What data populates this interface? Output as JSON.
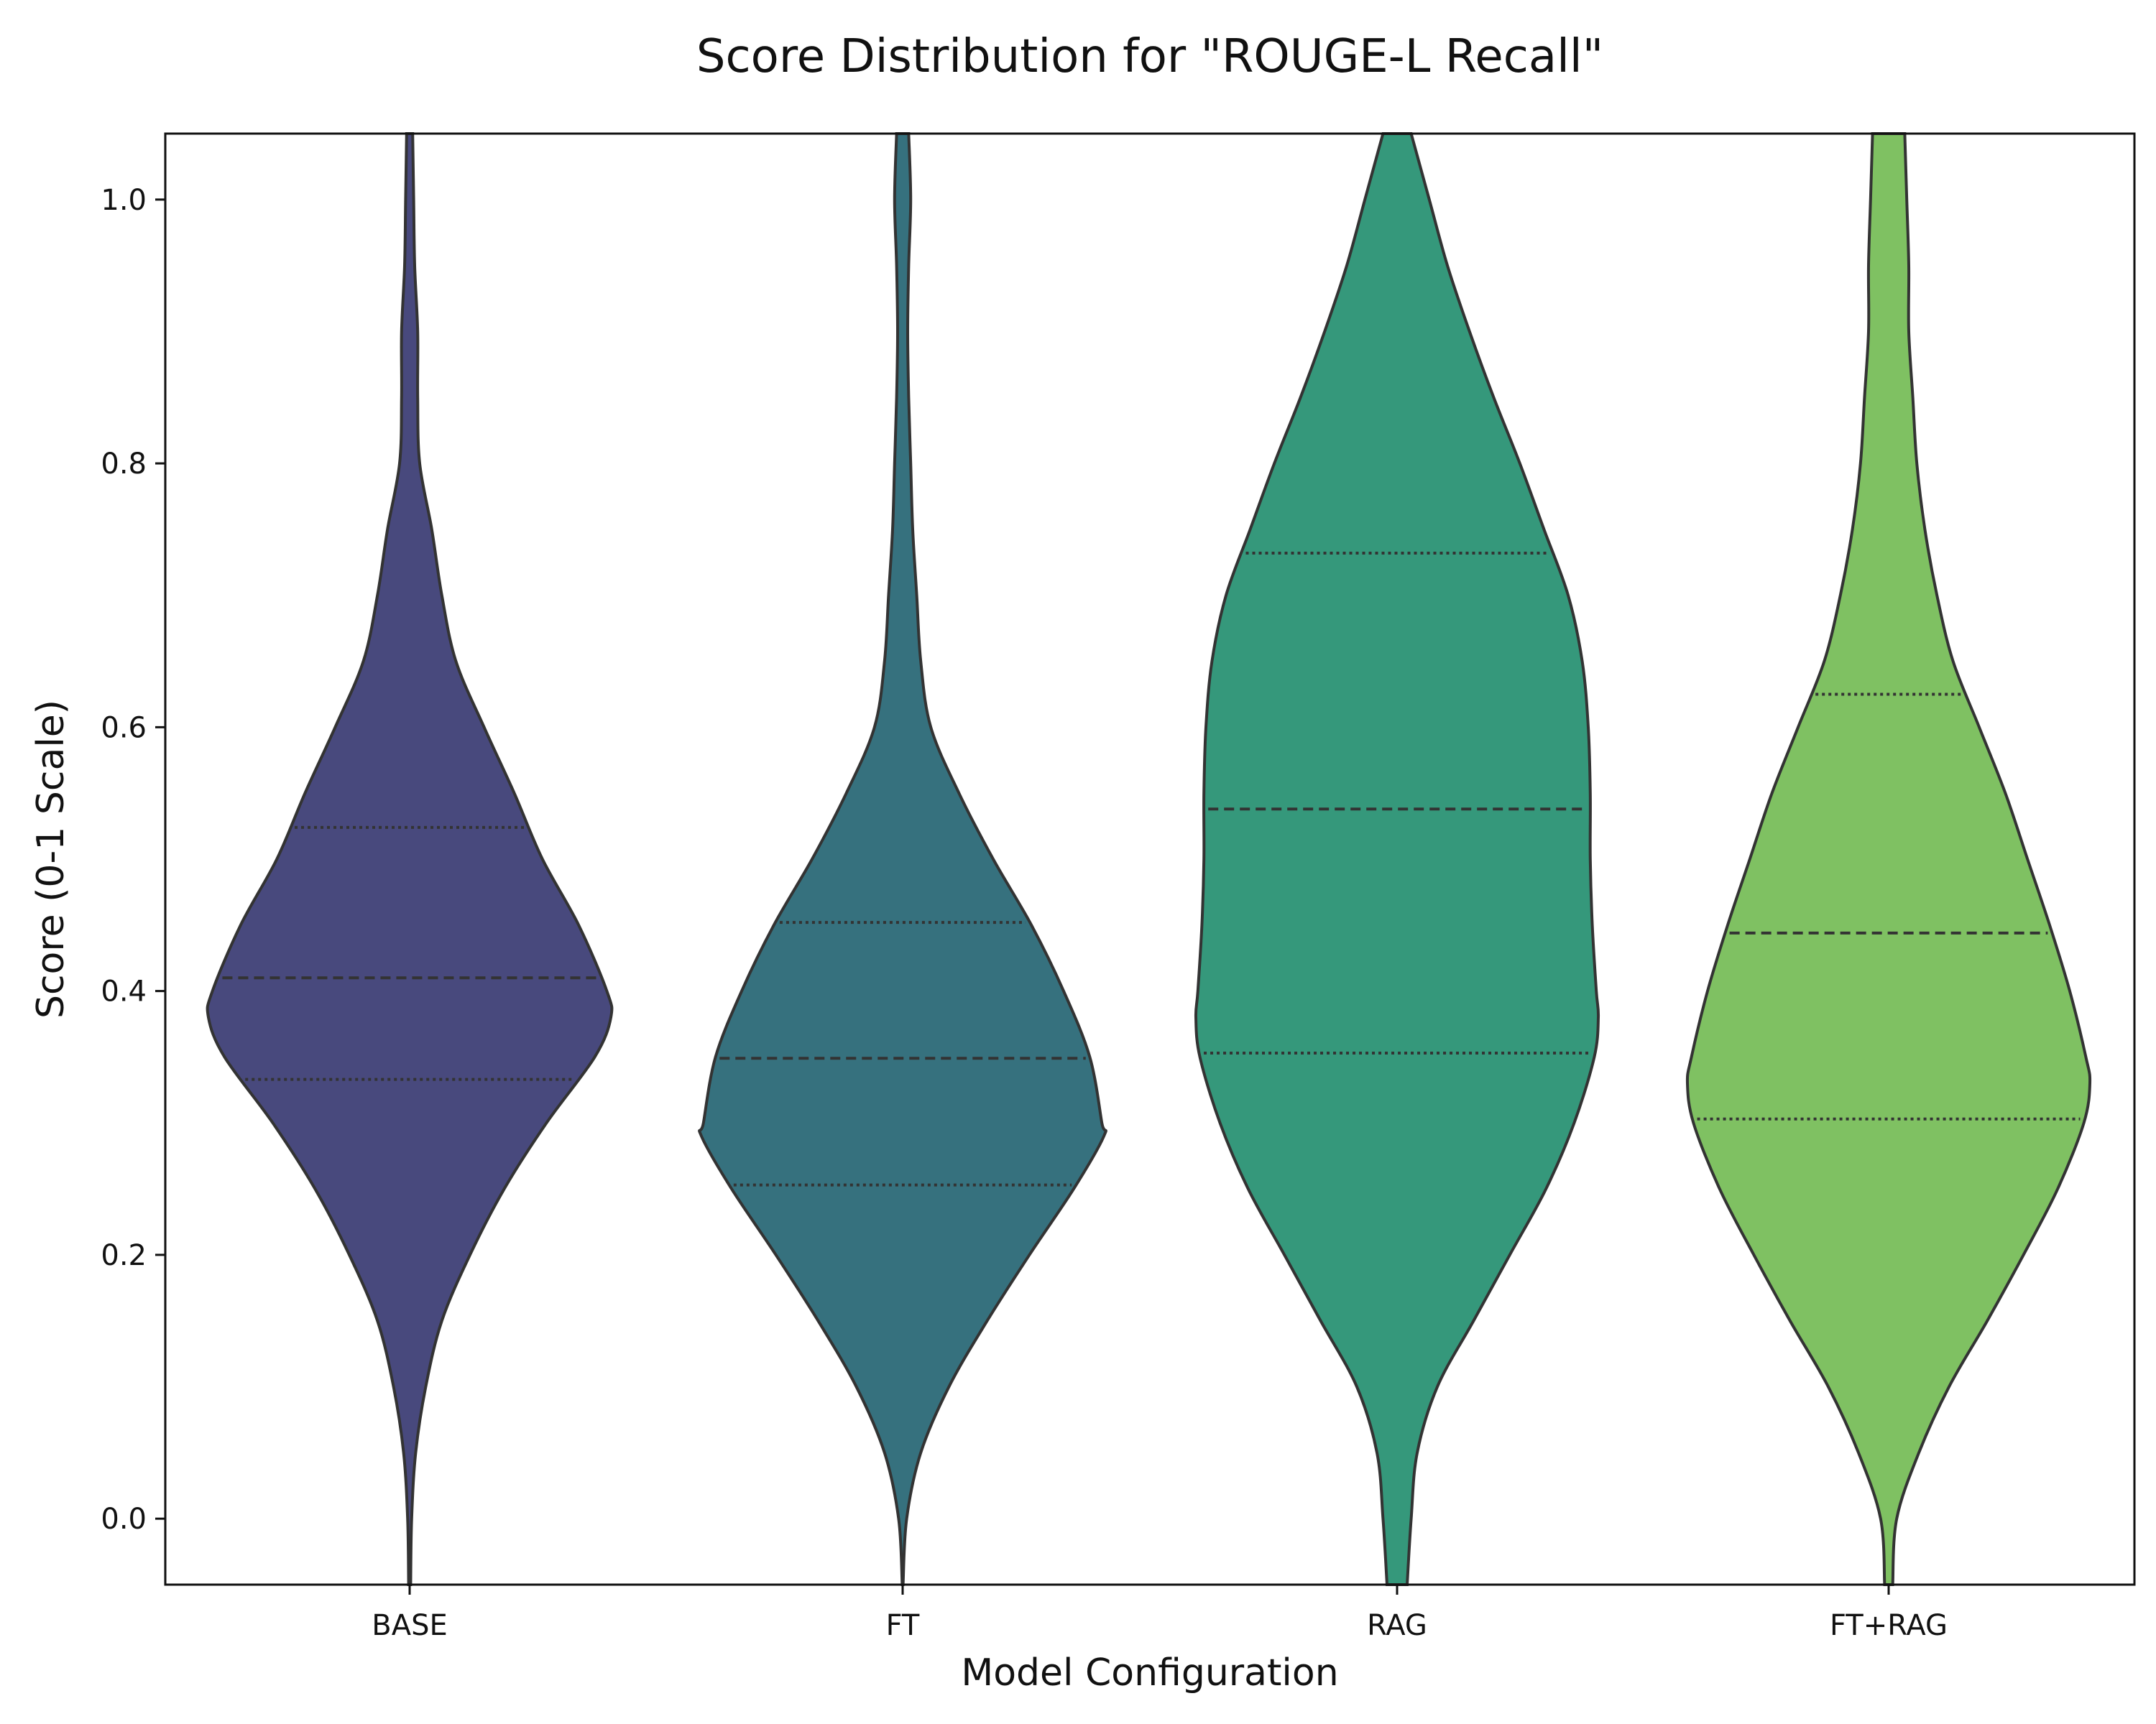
{
  "chart_data": {
    "type": "violin",
    "title": "Score Distribution for \"ROUGE-L Recall\"",
    "xlabel": "Model Configuration",
    "ylabel": "Score (0-1 Scale)",
    "ylim": [
      -0.05,
      1.05
    ],
    "yticks": [
      0.0,
      0.2,
      0.4,
      0.6,
      0.8,
      1.0
    ],
    "ytick_labels": [
      "0.0",
      "0.2",
      "0.4",
      "0.6",
      "0.8",
      "1.0"
    ],
    "categories": [
      "BASE",
      "FT",
      "RAG",
      "FT+RAG"
    ],
    "grid": false,
    "series": [
      {
        "category": "BASE",
        "color": "#48497d",
        "q1": 0.333,
        "median": 0.41,
        "q3": 0.524,
        "density": [
          [
            -0.05,
            0.005
          ],
          [
            0.0,
            0.01
          ],
          [
            0.05,
            0.03
          ],
          [
            0.1,
            0.08
          ],
          [
            0.15,
            0.16
          ],
          [
            0.2,
            0.3
          ],
          [
            0.25,
            0.47
          ],
          [
            0.3,
            0.68
          ],
          [
            0.35,
            0.92
          ],
          [
            0.38,
            1.0
          ],
          [
            0.4,
            0.98
          ],
          [
            0.45,
            0.84
          ],
          [
            0.5,
            0.66
          ],
          [
            0.55,
            0.52
          ],
          [
            0.6,
            0.37
          ],
          [
            0.65,
            0.23
          ],
          [
            0.7,
            0.16
          ],
          [
            0.75,
            0.11
          ],
          [
            0.8,
            0.05
          ],
          [
            0.85,
            0.04
          ],
          [
            0.9,
            0.04
          ],
          [
            0.95,
            0.025
          ],
          [
            1.0,
            0.02
          ],
          [
            1.05,
            0.015
          ]
        ]
      },
      {
        "category": "FT",
        "color": "#36717e",
        "q1": 0.253,
        "median": 0.349,
        "q3": 0.452,
        "density": [
          [
            -0.05,
            0.002
          ],
          [
            0.0,
            0.02
          ],
          [
            0.05,
            0.09
          ],
          [
            0.1,
            0.23
          ],
          [
            0.15,
            0.42
          ],
          [
            0.2,
            0.63
          ],
          [
            0.25,
            0.85
          ],
          [
            0.29,
            1.0
          ],
          [
            0.3,
            0.99
          ],
          [
            0.35,
            0.93
          ],
          [
            0.4,
            0.8
          ],
          [
            0.45,
            0.64
          ],
          [
            0.5,
            0.45
          ],
          [
            0.55,
            0.28
          ],
          [
            0.6,
            0.14
          ],
          [
            0.65,
            0.09
          ],
          [
            0.7,
            0.07
          ],
          [
            0.75,
            0.05
          ],
          [
            0.8,
            0.04
          ],
          [
            0.85,
            0.03
          ],
          [
            0.9,
            0.025
          ],
          [
            0.95,
            0.03
          ],
          [
            1.0,
            0.04
          ],
          [
            1.05,
            0.03
          ]
        ]
      },
      {
        "category": "RAG",
        "color": "#35987b",
        "q1": 0.353,
        "median": 0.538,
        "q3": 0.732,
        "density": [
          [
            -0.05,
            0.05
          ],
          [
            0.0,
            0.07
          ],
          [
            0.05,
            0.1
          ],
          [
            0.1,
            0.2
          ],
          [
            0.15,
            0.38
          ],
          [
            0.2,
            0.56
          ],
          [
            0.25,
            0.74
          ],
          [
            0.3,
            0.88
          ],
          [
            0.35,
            0.98
          ],
          [
            0.38,
            1.0
          ],
          [
            0.4,
            0.99
          ],
          [
            0.45,
            0.97
          ],
          [
            0.5,
            0.96
          ],
          [
            0.55,
            0.96
          ],
          [
            0.6,
            0.95
          ],
          [
            0.65,
            0.92
          ],
          [
            0.7,
            0.85
          ],
          [
            0.75,
            0.73
          ],
          [
            0.8,
            0.61
          ],
          [
            0.85,
            0.48
          ],
          [
            0.9,
            0.36
          ],
          [
            0.95,
            0.25
          ],
          [
            1.0,
            0.16
          ],
          [
            1.05,
            0.07
          ]
        ]
      },
      {
        "category": "FT+RAG",
        "color": "#7fc162",
        "q1": 0.303,
        "median": 0.444,
        "q3": 0.625,
        "density": [
          [
            -0.05,
            0.02
          ],
          [
            0.0,
            0.04
          ],
          [
            0.05,
            0.15
          ],
          [
            0.1,
            0.3
          ],
          [
            0.15,
            0.49
          ],
          [
            0.2,
            0.67
          ],
          [
            0.25,
            0.84
          ],
          [
            0.3,
            0.97
          ],
          [
            0.33,
            1.0
          ],
          [
            0.35,
            0.98
          ],
          [
            0.4,
            0.9
          ],
          [
            0.45,
            0.8
          ],
          [
            0.5,
            0.69
          ],
          [
            0.55,
            0.58
          ],
          [
            0.6,
            0.45
          ],
          [
            0.65,
            0.32
          ],
          [
            0.7,
            0.24
          ],
          [
            0.75,
            0.18
          ],
          [
            0.8,
            0.14
          ],
          [
            0.85,
            0.12
          ],
          [
            0.9,
            0.1
          ],
          [
            0.95,
            0.1
          ],
          [
            1.0,
            0.09
          ],
          [
            1.05,
            0.08
          ]
        ]
      }
    ]
  }
}
